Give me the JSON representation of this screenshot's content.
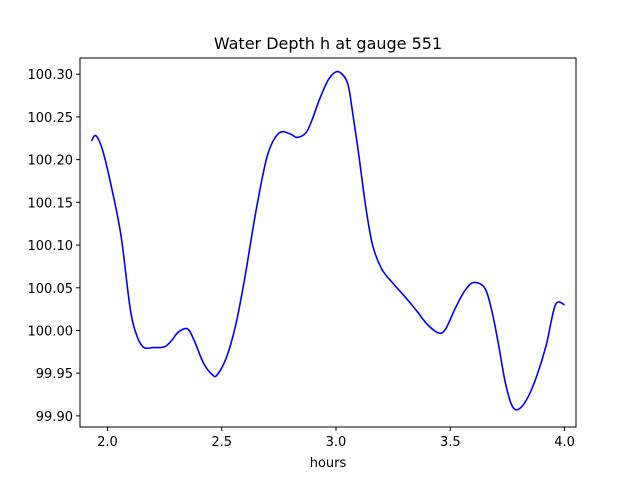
{
  "chart_data": {
    "type": "line",
    "title": "Water Depth h at gauge 551",
    "xlabel": "hours",
    "ylabel": "",
    "xlim": [
      1.88,
      4.05
    ],
    "ylim": [
      99.887,
      100.319
    ],
    "xticks": [
      2.0,
      2.5,
      3.0,
      3.5,
      4.0
    ],
    "xtick_labels": [
      "2.0",
      "2.5",
      "3.0",
      "3.5",
      "4.0"
    ],
    "yticks": [
      99.9,
      99.95,
      100.0,
      100.05,
      100.1,
      100.15,
      100.2,
      100.25,
      100.3
    ],
    "ytick_labels": [
      "99.90",
      "99.95",
      "100.00",
      "100.05",
      "100.10",
      "100.15",
      "100.20",
      "100.25",
      "100.30"
    ],
    "grid": false,
    "legend": false,
    "series": [
      {
        "color": "#0000ff",
        "x": [
          1.93,
          1.95,
          1.98,
          2.02,
          2.06,
          2.1,
          2.13,
          2.16,
          2.2,
          2.25,
          2.28,
          2.31,
          2.35,
          2.38,
          2.42,
          2.46,
          2.48,
          2.52,
          2.56,
          2.6,
          2.65,
          2.7,
          2.75,
          2.8,
          2.83,
          2.87,
          2.9,
          2.93,
          2.97,
          3.01,
          3.05,
          3.07,
          3.1,
          3.13,
          3.16,
          3.2,
          3.25,
          3.3,
          3.35,
          3.4,
          3.45,
          3.48,
          3.52,
          3.56,
          3.6,
          3.65,
          3.68,
          3.71,
          3.74,
          3.77,
          3.8,
          3.84,
          3.88,
          3.92,
          3.96,
          4.0
        ],
        "y": [
          100.222,
          100.228,
          100.21,
          100.165,
          100.11,
          100.025,
          99.993,
          99.98,
          99.98,
          99.981,
          99.988,
          99.998,
          100.002,
          99.988,
          99.962,
          99.948,
          99.948,
          99.968,
          100.005,
          100.06,
          100.14,
          100.205,
          100.231,
          100.23,
          100.226,
          100.232,
          100.25,
          100.272,
          100.295,
          100.303,
          100.29,
          100.26,
          100.205,
          100.145,
          100.1,
          100.072,
          100.055,
          100.04,
          100.024,
          100.007,
          99.997,
          100.002,
          100.025,
          100.045,
          100.056,
          100.05,
          100.025,
          99.985,
          99.94,
          99.912,
          99.908,
          99.922,
          99.948,
          99.983,
          100.03,
          100.03
        ]
      }
    ]
  }
}
